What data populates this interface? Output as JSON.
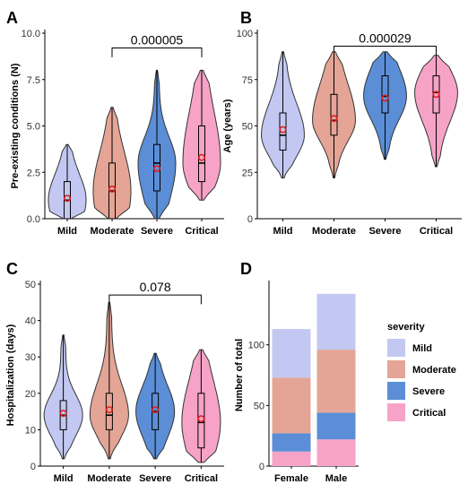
{
  "figure": {
    "panels": [
      "A",
      "B",
      "C",
      "D"
    ]
  },
  "colors": {
    "Mild": "#c3c8f2",
    "Moderate": "#e4a596",
    "Severe": "#5b8ed6",
    "Critical": "#f7a3c8",
    "mean_marker": "#e02020",
    "axis": "#000000"
  },
  "chart_data": [
    {
      "panel": "A",
      "type": "violin",
      "ylabel": "Pre-existing conditions (N)",
      "categories": [
        "Mild",
        "Moderate",
        "Severe",
        "Critical"
      ],
      "ylim": [
        0,
        10
      ],
      "yticks": [
        "0.0",
        "2.5",
        "5.0",
        "7.5",
        "10.0"
      ],
      "grid": false,
      "groups": [
        {
          "name": "Mild",
          "min": 0,
          "q1": 0,
          "median": 1,
          "q3": 2,
          "max": 4,
          "mean": 1.1
        },
        {
          "name": "Moderate",
          "min": 0,
          "q1": 0,
          "median": 1.5,
          "q3": 3,
          "max": 6,
          "mean": 1.6
        },
        {
          "name": "Severe",
          "min": 0,
          "q1": 1.5,
          "median": 3,
          "q3": 4,
          "max": 8,
          "mean": 2.7
        },
        {
          "name": "Critical",
          "min": 1,
          "q1": 2,
          "median": 3,
          "q3": 5,
          "max": 8,
          "mean": 3.3
        }
      ],
      "annotation": {
        "label": "0.000005",
        "from": "Moderate",
        "to": "Critical",
        "y": 9.2
      }
    },
    {
      "panel": "B",
      "type": "violin",
      "ylabel": "Age (years)",
      "categories": [
        "Mild",
        "Moderate",
        "Severe",
        "Critical"
      ],
      "ylim": [
        0,
        100
      ],
      "yticks": [
        "0",
        "25",
        "50",
        "75",
        "100"
      ],
      "grid": false,
      "groups": [
        {
          "name": "Mild",
          "min": 22,
          "q1": 37,
          "median": 45,
          "q3": 57,
          "max": 90,
          "mean": 48
        },
        {
          "name": "Moderate",
          "min": 22,
          "q1": 45,
          "median": 53,
          "q3": 67,
          "max": 90,
          "mean": 54
        },
        {
          "name": "Severe",
          "min": 32,
          "q1": 57,
          "median": 66,
          "q3": 77,
          "max": 90,
          "mean": 65
        },
        {
          "name": "Critical",
          "min": 28,
          "q1": 57,
          "median": 68,
          "q3": 77,
          "max": 88,
          "mean": 67
        }
      ],
      "annotation": {
        "label": "0.000029",
        "from": "Moderate",
        "to": "Critical",
        "y": 93
      }
    },
    {
      "panel": "C",
      "type": "violin",
      "ylabel": "Hospitalization (days)",
      "categories": [
        "Mild",
        "Moderate",
        "Severe",
        "Critical"
      ],
      "ylim": [
        0,
        50
      ],
      "yticks": [
        "0",
        "10",
        "20",
        "30",
        "40",
        "50"
      ],
      "grid": false,
      "groups": [
        {
          "name": "Mild",
          "min": 2,
          "q1": 10,
          "median": 14,
          "q3": 18,
          "max": 36,
          "mean": 14.5
        },
        {
          "name": "Moderate",
          "min": 2,
          "q1": 10,
          "median": 14,
          "q3": 20,
          "max": 45,
          "mean": 15.5
        },
        {
          "name": "Severe",
          "min": 2,
          "q1": 10,
          "median": 15,
          "q3": 20,
          "max": 31,
          "mean": 15.5
        },
        {
          "name": "Critical",
          "min": 1,
          "q1": 5,
          "median": 12,
          "q3": 20,
          "max": 32,
          "mean": 13
        }
      ],
      "annotation": {
        "label": "0.078",
        "from": "Moderate",
        "to": "Critical",
        "y": 47
      }
    },
    {
      "panel": "D",
      "type": "bar",
      "stacked": true,
      "ylabel": "Number of total",
      "categories": [
        "Female",
        "Male"
      ],
      "ylim": [
        0,
        150
      ],
      "yticks": [
        "0",
        "50",
        "100"
      ],
      "legend_title": "severity",
      "legend_position": "right",
      "series": [
        {
          "name": "Critical",
          "values": [
            12,
            22
          ]
        },
        {
          "name": "Severe",
          "values": [
            15,
            22
          ]
        },
        {
          "name": "Moderate",
          "values": [
            46,
            52
          ]
        },
        {
          "name": "Mild",
          "values": [
            40,
            46
          ]
        }
      ]
    }
  ]
}
